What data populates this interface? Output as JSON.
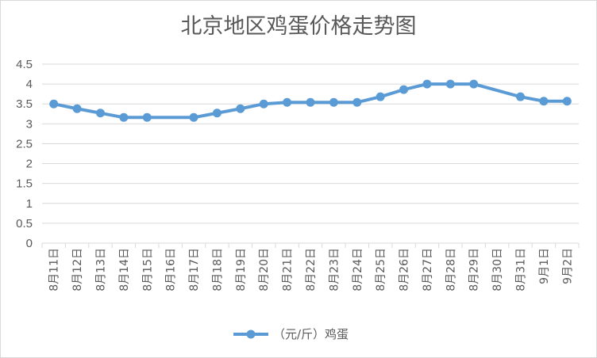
{
  "chart_data": {
    "type": "line",
    "title": "北京地区鸡蛋价格走势图",
    "categories": [
      "8月11日",
      "8月12日",
      "8月13日",
      "8月14日",
      "8月15日",
      "8月16日",
      "8月17日",
      "8月18日",
      "8月19日",
      "8月20日",
      "8月21日",
      "8月22日",
      "8月23日",
      "8月24日",
      "8月25日",
      "8月26日",
      "8月27日",
      "8月28日",
      "8月29日",
      "8月30日",
      "8月31日",
      "9月1日",
      "9月2日"
    ],
    "y_ticks": [
      "0",
      "0.5",
      "1",
      "1.5",
      "2",
      "2.5",
      "3",
      "3.5",
      "4",
      "4.5"
    ],
    "ylim": [
      0,
      4.5
    ],
    "grid": true,
    "legend_position": "bottom",
    "series": [
      {
        "name": "（元/斤）鸡蛋",
        "color": "#5b9bd5",
        "values": [
          3.5,
          3.38,
          3.27,
          3.16,
          3.16,
          null,
          3.16,
          3.27,
          3.38,
          3.5,
          3.54,
          3.54,
          3.54,
          3.54,
          3.68,
          3.86,
          4.0,
          4.0,
          4.0,
          null,
          3.68,
          3.57,
          3.57
        ]
      }
    ]
  }
}
